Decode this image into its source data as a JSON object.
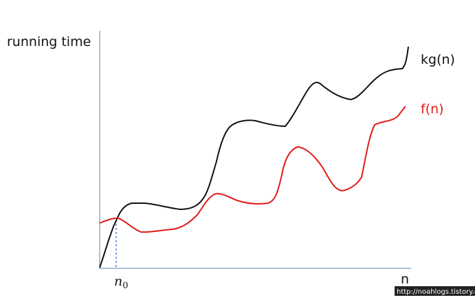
{
  "y_axis_label": "running time",
  "curves": [
    {
      "label": "kg(n)"
    },
    {
      "label": "f(n)"
    }
  ],
  "threshold": {
    "base": "n",
    "sub": "0"
  },
  "x_axis_label": "n",
  "watermark": "http://noahlogs.tistory.co"
}
